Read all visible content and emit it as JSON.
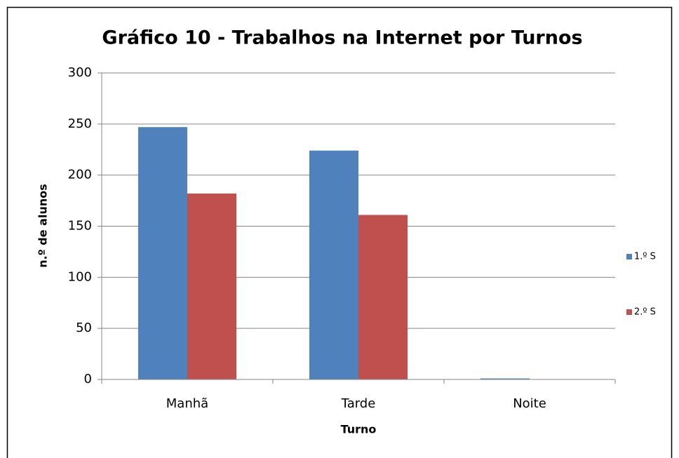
{
  "chart_data": {
    "type": "bar",
    "title": "Gráfico 10 - Trabalhos na Internet por Turnos",
    "x_label": "Turno",
    "y_label": "n.º de alunos",
    "categories": [
      "Manhã",
      "Tarde",
      "Noite"
    ],
    "series": [
      {
        "name": "1.º S",
        "color": "#4f81bd",
        "values": [
          247,
          224,
          1
        ]
      },
      {
        "name": "2.º S",
        "color": "#c0504d",
        "values": [
          182,
          161,
          0
        ]
      }
    ],
    "ylim": [
      0,
      300
    ],
    "yticks": [
      0,
      50,
      100,
      150,
      200,
      250,
      300
    ],
    "grid": true,
    "legend": "right"
  }
}
